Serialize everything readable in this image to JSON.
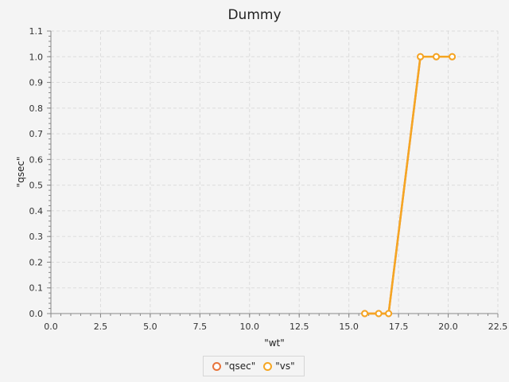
{
  "chart_data": {
    "type": "line",
    "title": "Dummy",
    "xlabel": "\"wt\"",
    "ylabel": "\"qsec\"",
    "xlim": [
      0,
      22.5
    ],
    "ylim": [
      0,
      1.1
    ],
    "x_ticks": [
      "0.0",
      "2.5",
      "5.0",
      "7.5",
      "10.0",
      "12.5",
      "15.0",
      "17.5",
      "20.0",
      "22.5"
    ],
    "y_ticks": [
      "0.0",
      "0.1",
      "0.2",
      "0.3",
      "0.4",
      "0.5",
      "0.6",
      "0.7",
      "0.8",
      "0.9",
      "1.0",
      "1.1"
    ],
    "grid": true,
    "legend_position": "bottom",
    "series": [
      {
        "name": "\"qsec\"",
        "color": "#e8743b",
        "x": [
          15.8,
          16.5,
          17.0,
          18.6,
          19.4,
          20.2
        ],
        "y": [
          0,
          0,
          0,
          1,
          1,
          1
        ]
      },
      {
        "name": "\"vs\"",
        "color": "#f5a623",
        "x": [
          15.8,
          16.5,
          17.0,
          18.6,
          19.4,
          20.2
        ],
        "y": [
          0,
          0,
          0,
          1,
          1,
          1
        ]
      }
    ]
  }
}
